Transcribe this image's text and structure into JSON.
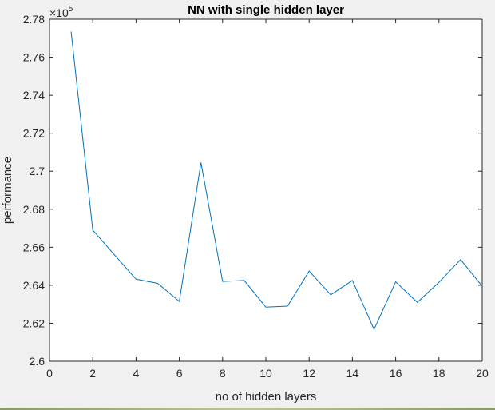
{
  "chart_data": {
    "type": "line",
    "title": "NN with single hidden layer",
    "xlabel": "no of hidden layers",
    "ylabel": "performance",
    "exponent_label": "×10",
    "exponent_power": "5",
    "xlim": [
      0,
      20
    ],
    "ylim": [
      2.6,
      2.78
    ],
    "xticks": [
      0,
      2,
      4,
      6,
      8,
      10,
      12,
      14,
      16,
      18,
      20
    ],
    "xtick_labels": [
      "0",
      "2",
      "4",
      "6",
      "8",
      "10",
      "12",
      "14",
      "16",
      "18",
      "20"
    ],
    "yticks": [
      2.6,
      2.62,
      2.64,
      2.66,
      2.68,
      2.7,
      2.72,
      2.74,
      2.76,
      2.78
    ],
    "ytick_labels": [
      "2.6",
      "2.62",
      "2.64",
      "2.66",
      "2.68",
      "2.7",
      "2.72",
      "2.74",
      "2.76",
      "2.78"
    ],
    "grid": false,
    "series": [
      {
        "color": "#0072bd",
        "x": [
          1,
          2,
          3,
          4,
          5,
          6,
          7,
          8,
          9,
          10,
          11,
          12,
          13,
          14,
          15,
          16,
          17,
          18,
          19,
          20
        ],
        "y": [
          2.7735,
          2.669,
          2.656,
          2.6432,
          2.641,
          2.6315,
          2.7045,
          2.642,
          2.6425,
          2.6285,
          2.629,
          2.6475,
          2.635,
          2.6425,
          2.6168,
          2.6418,
          2.631,
          2.6415,
          2.6535,
          2.6395
        ]
      }
    ]
  }
}
